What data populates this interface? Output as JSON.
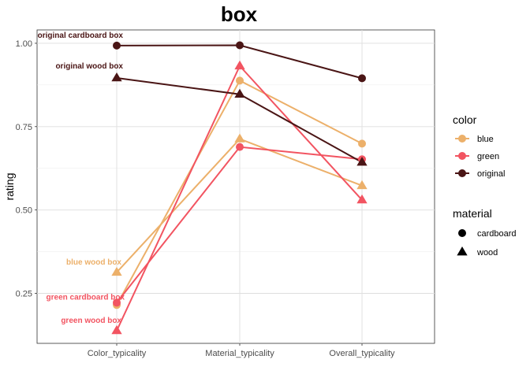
{
  "chart_data": {
    "type": "line",
    "title": "box",
    "xlabel": "",
    "ylabel": "rating",
    "categories": [
      "Color_typicality",
      "Material_typicality",
      "Overall_typicality"
    ],
    "ylim": [
      0.1,
      1.04
    ],
    "yticks": [
      0.25,
      0.5,
      0.75,
      1.0
    ],
    "ytick_labels": [
      "0.25",
      "0.50",
      "0.75",
      "1.00"
    ],
    "grid": true,
    "legend_position": "right",
    "colors": {
      "blue": "#ECB06A",
      "green": "#F25461",
      "original": "#4A1515"
    },
    "legends": [
      {
        "title": "color",
        "items": [
          {
            "label": "blue",
            "key": "blue"
          },
          {
            "label": "green",
            "key": "green"
          },
          {
            "label": "original",
            "key": "original"
          }
        ]
      },
      {
        "title": "material",
        "items": [
          {
            "label": "cardboard",
            "shape": "circle"
          },
          {
            "label": "wood",
            "shape": "triangle"
          }
        ]
      }
    ],
    "series": [
      {
        "color": "blue",
        "material": "cardboard",
        "values": [
          0.215,
          0.888,
          0.699
        ],
        "label": ""
      },
      {
        "color": "blue",
        "material": "wood",
        "values": [
          0.313,
          0.713,
          0.573
        ],
        "label": "blue wood box"
      },
      {
        "color": "green",
        "material": "cardboard",
        "values": [
          0.222,
          0.689,
          0.652
        ],
        "label": "green cardboard box"
      },
      {
        "color": "green",
        "material": "wood",
        "values": [
          0.138,
          0.932,
          0.53
        ],
        "label": "green wood box"
      },
      {
        "color": "original",
        "material": "cardboard",
        "values": [
          0.993,
          0.994,
          0.895
        ],
        "label": "original cardboard box"
      },
      {
        "color": "original",
        "material": "wood",
        "values": [
          0.896,
          0.847,
          0.643
        ],
        "label": "original wood box"
      }
    ]
  }
}
